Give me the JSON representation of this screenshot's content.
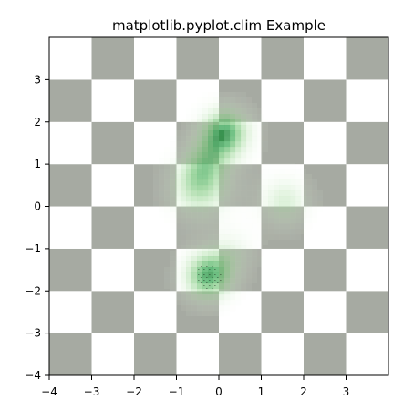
{
  "chart_data": {
    "type": "heatmap",
    "title": "matplotlib.pyplot.clim Example",
    "xlabel": "",
    "ylabel": "",
    "xlim": [
      -4,
      4
    ],
    "ylim": [
      -4,
      4
    ],
    "x_ticks": [
      -4,
      -3,
      -2,
      -1,
      0,
      1,
      2,
      3
    ],
    "y_ticks": [
      -4,
      -3,
      -2,
      -1,
      0,
      1,
      2,
      3
    ],
    "x_tick_labels": [
      "−4",
      "−3",
      "−2",
      "−1",
      "0",
      "1",
      "2",
      "3"
    ],
    "y_tick_labels": [
      "−4",
      "−3",
      "−2",
      "−1",
      "0",
      "1",
      "2",
      "3"
    ],
    "grid": false,
    "legend": "none",
    "background_pattern": {
      "type": "checkerboard",
      "cell_size": 1,
      "origin": [
        -4,
        -4
      ],
      "x_extent": [
        -4,
        4
      ],
      "y_extent": [
        -4,
        4
      ],
      "dark_color": "#a6aaa2",
      "light_color": "#ffffff"
    },
    "overlay": {
      "colormap": "Greens",
      "peak_color": "#1f6b2f",
      "blobs": [
        {
          "x": 0.15,
          "y": 1.75,
          "amplitude": 1.0,
          "spread": 0.45
        },
        {
          "x": -0.25,
          "y": -1.65,
          "amplitude": 1.0,
          "spread": 0.45
        },
        {
          "x": -0.45,
          "y": 0.45,
          "amplitude": 0.72,
          "spread": 0.55
        },
        {
          "x": 1.55,
          "y": 0.1,
          "amplitude": 0.55,
          "spread": 0.45
        },
        {
          "x": -0.35,
          "y": 1.05,
          "amplitude": 0.35,
          "spread": 0.4
        },
        {
          "x": 0.35,
          "y": -1.05,
          "amplitude": 0.3,
          "spread": 0.4
        }
      ]
    }
  }
}
